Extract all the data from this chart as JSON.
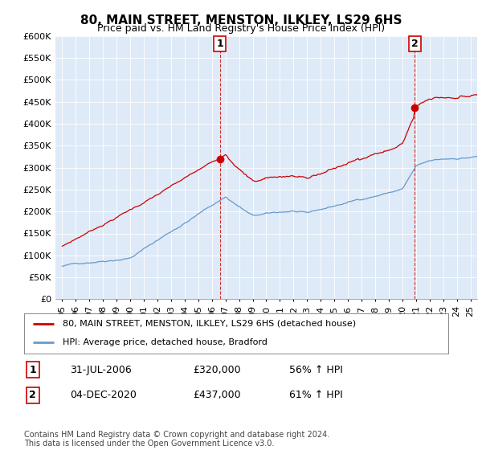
{
  "title": "80, MAIN STREET, MENSTON, ILKLEY, LS29 6HS",
  "subtitle": "Price paid vs. HM Land Registry's House Price Index (HPI)",
  "ylabel_ticks": [
    "£0",
    "£50K",
    "£100K",
    "£150K",
    "£200K",
    "£250K",
    "£300K",
    "£350K",
    "£400K",
    "£450K",
    "£500K",
    "£550K",
    "£600K"
  ],
  "ytick_values": [
    0,
    50000,
    100000,
    150000,
    200000,
    250000,
    300000,
    350000,
    400000,
    450000,
    500000,
    550000,
    600000
  ],
  "ylim": [
    0,
    600000
  ],
  "xlim_start": 1994.5,
  "xlim_end": 2025.5,
  "xticks": [
    1995,
    1996,
    1997,
    1998,
    1999,
    2000,
    2001,
    2002,
    2003,
    2004,
    2005,
    2006,
    2007,
    2008,
    2009,
    2010,
    2011,
    2012,
    2013,
    2014,
    2015,
    2016,
    2017,
    2018,
    2019,
    2020,
    2021,
    2022,
    2023,
    2024,
    2025
  ],
  "xtick_labels": [
    "95",
    "96",
    "97",
    "98",
    "99",
    "00",
    "01",
    "02",
    "03",
    "04",
    "05",
    "06",
    "07",
    "08",
    "09",
    "10",
    "11",
    "12",
    "13",
    "14",
    "15",
    "16",
    "17",
    "18",
    "19",
    "20",
    "21",
    "22",
    "23",
    "24",
    "25"
  ],
  "sale1_x": 2006.58,
  "sale1_y": 320000,
  "sale1_label": "1",
  "sale1_date": "31-JUL-2006",
  "sale1_price": "£320,000",
  "sale1_hpi": "56% ↑ HPI",
  "sale2_x": 2020.92,
  "sale2_y": 437000,
  "sale2_label": "2",
  "sale2_date": "04-DEC-2020",
  "sale2_price": "£437,000",
  "sale2_hpi": "61% ↑ HPI",
  "line1_color": "#cc0000",
  "line2_color": "#6699cc",
  "plot_bg_color": "#deeaf7",
  "legend1": "80, MAIN STREET, MENSTON, ILKLEY, LS29 6HS (detached house)",
  "legend2": "HPI: Average price, detached house, Bradford",
  "footnote": "Contains HM Land Registry data © Crown copyright and database right 2024.\nThis data is licensed under the Open Government Licence v3.0.",
  "background_color": "#ffffff",
  "grid_color": "#aaaaaa"
}
